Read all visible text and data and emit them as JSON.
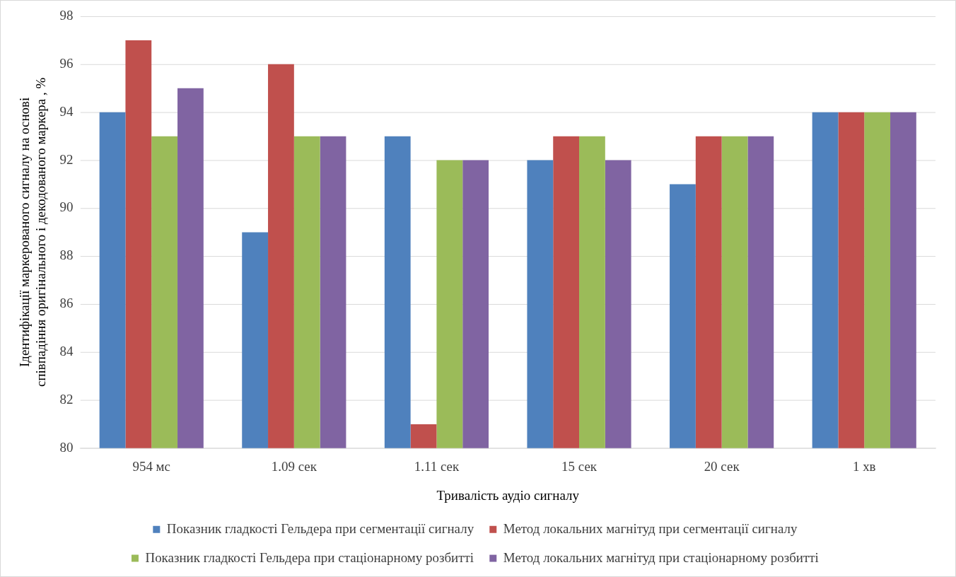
{
  "chart_data": {
    "type": "bar",
    "xlabel": "Тривалість аудіо сигналу",
    "ylabel": "Ідентифікації маркерованого сигналу на основі співпадіння оригінального і декодованого маркера , %",
    "categories": [
      "954 мс",
      "1.09 сек",
      "1.11 сек",
      "15 сек",
      "20 сек",
      "1 хв"
    ],
    "series": [
      {
        "name": "Показник гладкості Гельдера при сегментації сигналу",
        "color": "#4f81bd",
        "values": [
          94,
          89,
          93,
          92,
          91,
          94
        ]
      },
      {
        "name": "Метод локальних магнітуд при сегментації сигналу",
        "color": "#c0504d",
        "values": [
          97,
          96,
          81,
          93,
          93,
          94
        ]
      },
      {
        "name": "Показник гладкості Гельдера при стаціонарному розбитті",
        "color": "#9bbb59",
        "values": [
          93,
          93,
          92,
          93,
          93,
          94
        ]
      },
      {
        "name": "Метод локальних магнітуд при стаціонарному розбитті",
        "color": "#8064a2",
        "values": [
          95,
          93,
          92,
          92,
          93,
          94
        ]
      }
    ],
    "ylim": [
      80,
      98
    ],
    "yticks": [
      80,
      82,
      84,
      86,
      88,
      90,
      92,
      94,
      96,
      98
    ],
    "grid": "y",
    "legend": "bottom"
  }
}
